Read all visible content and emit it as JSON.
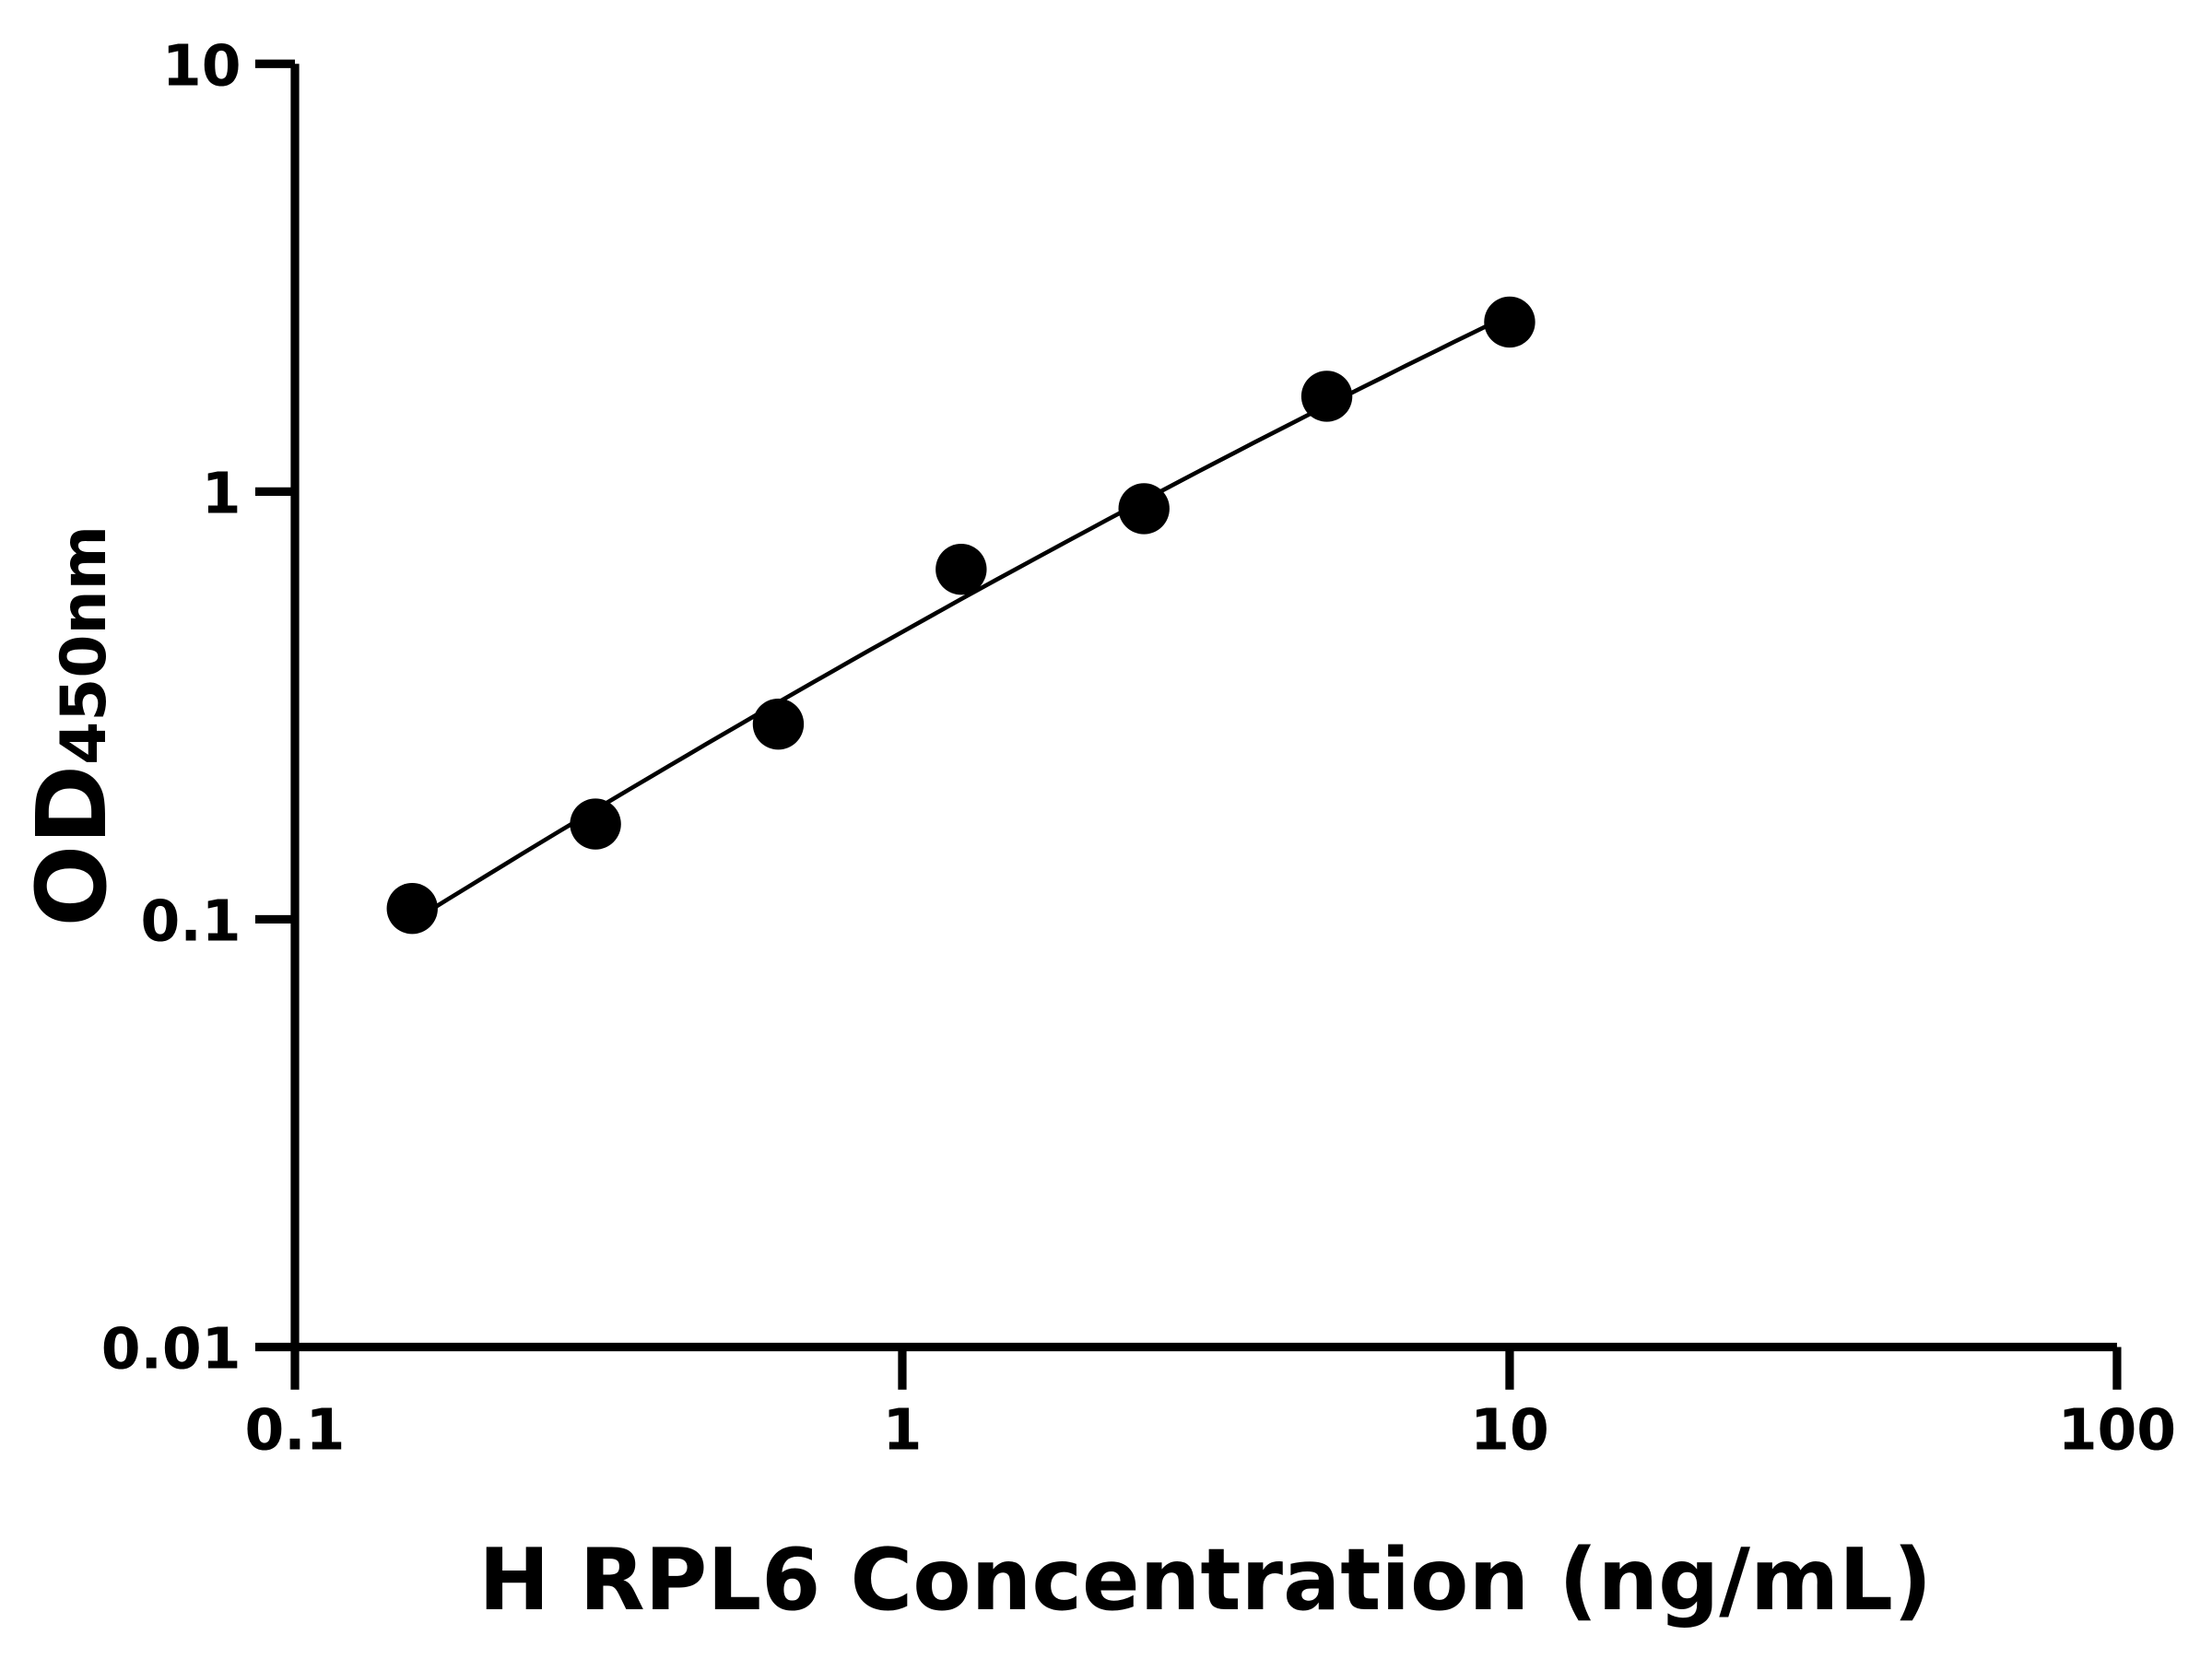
{
  "chart_data": {
    "type": "scatter",
    "title": "",
    "xlabel": "H RPL6 Concentration (ng/mL)",
    "ylabel": {
      "main": "OD",
      "subscript": "450nm"
    },
    "x_scale": "log",
    "y_scale": "log",
    "xlim": [
      0.1,
      100
    ],
    "ylim": [
      0.01,
      10
    ],
    "x_ticks": [
      {
        "value": 0.1,
        "label": "0.1"
      },
      {
        "value": 1,
        "label": "1"
      },
      {
        "value": 10,
        "label": "10"
      },
      {
        "value": 100,
        "label": "100"
      }
    ],
    "y_ticks": [
      {
        "value": 0.01,
        "label": "0.01"
      },
      {
        "value": 0.1,
        "label": "0.1"
      },
      {
        "value": 1,
        "label": "1"
      },
      {
        "value": 10,
        "label": "10"
      }
    ],
    "grid": false,
    "fit_curve": true,
    "colors": {
      "points": "#000000",
      "line": "#000000"
    },
    "series": [
      {
        "x": [
          0.156,
          0.3125,
          0.625,
          1.25,
          2.5,
          5,
          10
        ],
        "y": [
          0.106,
          0.167,
          0.286,
          0.658,
          0.912,
          1.67,
          2.49
        ]
      }
    ]
  }
}
